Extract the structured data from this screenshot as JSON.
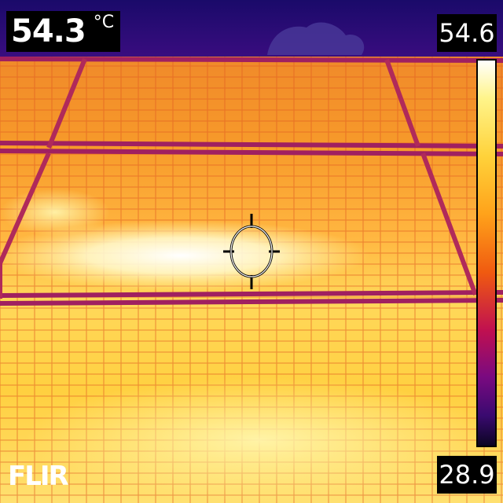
{
  "spot": {
    "value": "54.3",
    "unit": "°C"
  },
  "scale": {
    "max": "54.6",
    "min": "28.9",
    "palette": [
      "#ffffff",
      "#fff48a",
      "#ffd23a",
      "#ffa21a",
      "#f05a10",
      "#c01050",
      "#7a0a80",
      "#3a0a70",
      "#0a0520"
    ]
  },
  "logo": {
    "text": "FLIR"
  },
  "crosshair": {
    "icon": "spot-meter-crosshair-icon"
  }
}
